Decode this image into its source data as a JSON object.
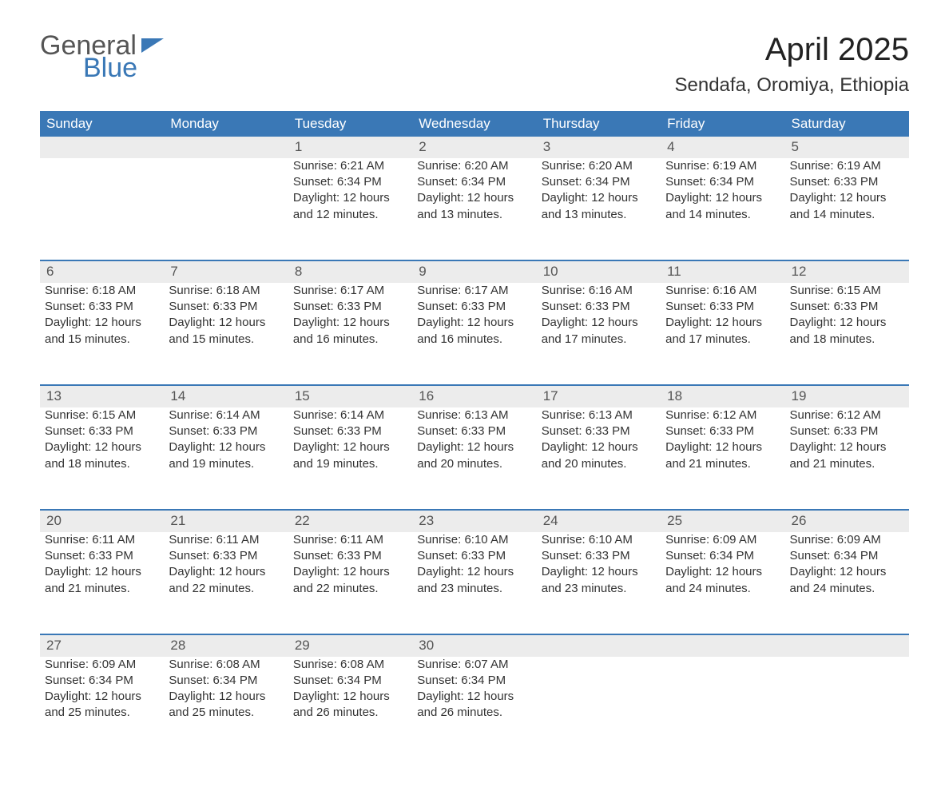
{
  "logo": {
    "line1": "General",
    "line2": "Blue",
    "flag_color": "#3a78b6"
  },
  "header": {
    "title": "April 2025",
    "location": "Sendafa, Oromiya, Ethiopia"
  },
  "colors": {
    "header_bg": "#3a78b6",
    "header_text": "#ffffff",
    "daynum_bg": "#ececec",
    "row_divider": "#3a78b6",
    "body_text": "#333333",
    "background": "#ffffff"
  },
  "typography": {
    "title_fontsize": 40,
    "location_fontsize": 24,
    "header_fontsize": 17,
    "cell_fontsize": 15
  },
  "days_of_week": [
    "Sunday",
    "Monday",
    "Tuesday",
    "Wednesday",
    "Thursday",
    "Friday",
    "Saturday"
  ],
  "weeks": [
    [
      null,
      null,
      {
        "d": "1",
        "sr": "Sunrise: 6:21 AM",
        "ss": "Sunset: 6:34 PM",
        "dl1": "Daylight: 12 hours",
        "dl2": "and 12 minutes."
      },
      {
        "d": "2",
        "sr": "Sunrise: 6:20 AM",
        "ss": "Sunset: 6:34 PM",
        "dl1": "Daylight: 12 hours",
        "dl2": "and 13 minutes."
      },
      {
        "d": "3",
        "sr": "Sunrise: 6:20 AM",
        "ss": "Sunset: 6:34 PM",
        "dl1": "Daylight: 12 hours",
        "dl2": "and 13 minutes."
      },
      {
        "d": "4",
        "sr": "Sunrise: 6:19 AM",
        "ss": "Sunset: 6:34 PM",
        "dl1": "Daylight: 12 hours",
        "dl2": "and 14 minutes."
      },
      {
        "d": "5",
        "sr": "Sunrise: 6:19 AM",
        "ss": "Sunset: 6:33 PM",
        "dl1": "Daylight: 12 hours",
        "dl2": "and 14 minutes."
      }
    ],
    [
      {
        "d": "6",
        "sr": "Sunrise: 6:18 AM",
        "ss": "Sunset: 6:33 PM",
        "dl1": "Daylight: 12 hours",
        "dl2": "and 15 minutes."
      },
      {
        "d": "7",
        "sr": "Sunrise: 6:18 AM",
        "ss": "Sunset: 6:33 PM",
        "dl1": "Daylight: 12 hours",
        "dl2": "and 15 minutes."
      },
      {
        "d": "8",
        "sr": "Sunrise: 6:17 AM",
        "ss": "Sunset: 6:33 PM",
        "dl1": "Daylight: 12 hours",
        "dl2": "and 16 minutes."
      },
      {
        "d": "9",
        "sr": "Sunrise: 6:17 AM",
        "ss": "Sunset: 6:33 PM",
        "dl1": "Daylight: 12 hours",
        "dl2": "and 16 minutes."
      },
      {
        "d": "10",
        "sr": "Sunrise: 6:16 AM",
        "ss": "Sunset: 6:33 PM",
        "dl1": "Daylight: 12 hours",
        "dl2": "and 17 minutes."
      },
      {
        "d": "11",
        "sr": "Sunrise: 6:16 AM",
        "ss": "Sunset: 6:33 PM",
        "dl1": "Daylight: 12 hours",
        "dl2": "and 17 minutes."
      },
      {
        "d": "12",
        "sr": "Sunrise: 6:15 AM",
        "ss": "Sunset: 6:33 PM",
        "dl1": "Daylight: 12 hours",
        "dl2": "and 18 minutes."
      }
    ],
    [
      {
        "d": "13",
        "sr": "Sunrise: 6:15 AM",
        "ss": "Sunset: 6:33 PM",
        "dl1": "Daylight: 12 hours",
        "dl2": "and 18 minutes."
      },
      {
        "d": "14",
        "sr": "Sunrise: 6:14 AM",
        "ss": "Sunset: 6:33 PM",
        "dl1": "Daylight: 12 hours",
        "dl2": "and 19 minutes."
      },
      {
        "d": "15",
        "sr": "Sunrise: 6:14 AM",
        "ss": "Sunset: 6:33 PM",
        "dl1": "Daylight: 12 hours",
        "dl2": "and 19 minutes."
      },
      {
        "d": "16",
        "sr": "Sunrise: 6:13 AM",
        "ss": "Sunset: 6:33 PM",
        "dl1": "Daylight: 12 hours",
        "dl2": "and 20 minutes."
      },
      {
        "d": "17",
        "sr": "Sunrise: 6:13 AM",
        "ss": "Sunset: 6:33 PM",
        "dl1": "Daylight: 12 hours",
        "dl2": "and 20 minutes."
      },
      {
        "d": "18",
        "sr": "Sunrise: 6:12 AM",
        "ss": "Sunset: 6:33 PM",
        "dl1": "Daylight: 12 hours",
        "dl2": "and 21 minutes."
      },
      {
        "d": "19",
        "sr": "Sunrise: 6:12 AM",
        "ss": "Sunset: 6:33 PM",
        "dl1": "Daylight: 12 hours",
        "dl2": "and 21 minutes."
      }
    ],
    [
      {
        "d": "20",
        "sr": "Sunrise: 6:11 AM",
        "ss": "Sunset: 6:33 PM",
        "dl1": "Daylight: 12 hours",
        "dl2": "and 21 minutes."
      },
      {
        "d": "21",
        "sr": "Sunrise: 6:11 AM",
        "ss": "Sunset: 6:33 PM",
        "dl1": "Daylight: 12 hours",
        "dl2": "and 22 minutes."
      },
      {
        "d": "22",
        "sr": "Sunrise: 6:11 AM",
        "ss": "Sunset: 6:33 PM",
        "dl1": "Daylight: 12 hours",
        "dl2": "and 22 minutes."
      },
      {
        "d": "23",
        "sr": "Sunrise: 6:10 AM",
        "ss": "Sunset: 6:33 PM",
        "dl1": "Daylight: 12 hours",
        "dl2": "and 23 minutes."
      },
      {
        "d": "24",
        "sr": "Sunrise: 6:10 AM",
        "ss": "Sunset: 6:33 PM",
        "dl1": "Daylight: 12 hours",
        "dl2": "and 23 minutes."
      },
      {
        "d": "25",
        "sr": "Sunrise: 6:09 AM",
        "ss": "Sunset: 6:34 PM",
        "dl1": "Daylight: 12 hours",
        "dl2": "and 24 minutes."
      },
      {
        "d": "26",
        "sr": "Sunrise: 6:09 AM",
        "ss": "Sunset: 6:34 PM",
        "dl1": "Daylight: 12 hours",
        "dl2": "and 24 minutes."
      }
    ],
    [
      {
        "d": "27",
        "sr": "Sunrise: 6:09 AM",
        "ss": "Sunset: 6:34 PM",
        "dl1": "Daylight: 12 hours",
        "dl2": "and 25 minutes."
      },
      {
        "d": "28",
        "sr": "Sunrise: 6:08 AM",
        "ss": "Sunset: 6:34 PM",
        "dl1": "Daylight: 12 hours",
        "dl2": "and 25 minutes."
      },
      {
        "d": "29",
        "sr": "Sunrise: 6:08 AM",
        "ss": "Sunset: 6:34 PM",
        "dl1": "Daylight: 12 hours",
        "dl2": "and 26 minutes."
      },
      {
        "d": "30",
        "sr": "Sunrise: 6:07 AM",
        "ss": "Sunset: 6:34 PM",
        "dl1": "Daylight: 12 hours",
        "dl2": "and 26 minutes."
      },
      null,
      null,
      null
    ]
  ]
}
